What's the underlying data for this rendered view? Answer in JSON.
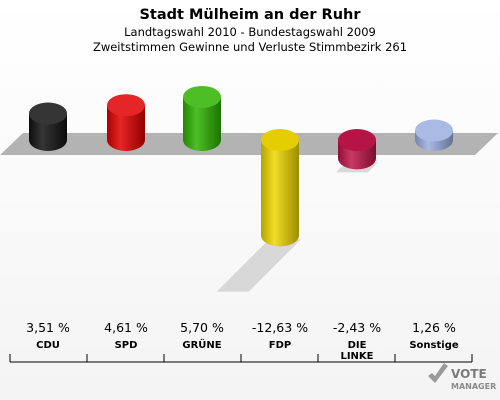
{
  "chart_data": {
    "type": "bar",
    "title": "Stadt Mülheim an der Ruhr",
    "subtitle_1": "Landtagswahl 2010 - Bundestagswahl 2009",
    "subtitle_2": "Zweitstimmen Gewinne und Verluste Stimmbezirk 261",
    "categories": [
      "CDU",
      "SPD",
      "GRÜNE",
      "FDP",
      "DIE LINKE",
      "Sonstige"
    ],
    "values": [
      3.51,
      4.61,
      5.7,
      -12.63,
      -2.43,
      1.26
    ],
    "value_labels": [
      "3,51 %",
      "4,61 %",
      "5,70 %",
      "-12,63 %",
      "-2,43 %",
      "1,26 %"
    ],
    "category_lines": [
      [
        "CDU"
      ],
      [
        "SPD"
      ],
      [
        "GRÜNE"
      ],
      [
        "FDP"
      ],
      [
        "DIE",
        "LINKE"
      ],
      [
        "Sonstige"
      ]
    ],
    "colors": [
      "#111111",
      "#e00000",
      "#2db300",
      "#f0d800",
      "#c0154a",
      "#9aaee0"
    ],
    "xlabel": "",
    "ylabel": "",
    "grid": false,
    "legend": "none"
  },
  "logo": {
    "line1": "VOTE",
    "line2": "MANAGER"
  }
}
